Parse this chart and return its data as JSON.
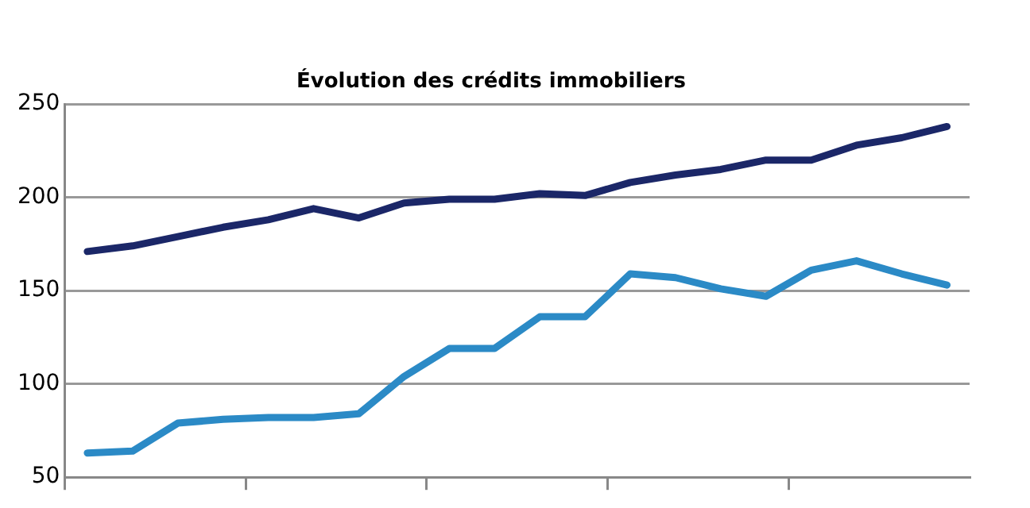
{
  "chart_data": {
    "type": "line",
    "title": "Évolution des crédits immobiliers",
    "categories": [
      null,
      null,
      null,
      null,
      null,
      null,
      null,
      null,
      null,
      null,
      null,
      null,
      null,
      null,
      null,
      null,
      null,
      null,
      null,
      null
    ],
    "series": [
      {
        "color": "#1b2768",
        "values": [
          171,
          174,
          179,
          184,
          188,
          194,
          189,
          197,
          199,
          199,
          202,
          201,
          208,
          212,
          215,
          220,
          220,
          228,
          232,
          238
        ]
      },
      {
        "color": "#2b8ac6",
        "values": [
          63,
          64,
          79,
          81,
          82,
          82,
          84,
          104,
          119,
          119,
          136,
          136,
          159,
          157,
          151,
          147,
          161,
          166,
          159,
          153
        ]
      }
    ],
    "ylim": [
      50,
      250
    ],
    "yticks": [
      50,
      100,
      150,
      200,
      250
    ],
    "grid": "y",
    "tick_labels": "y",
    "legend": false,
    "marker": "none",
    "line_style": "solid"
  }
}
